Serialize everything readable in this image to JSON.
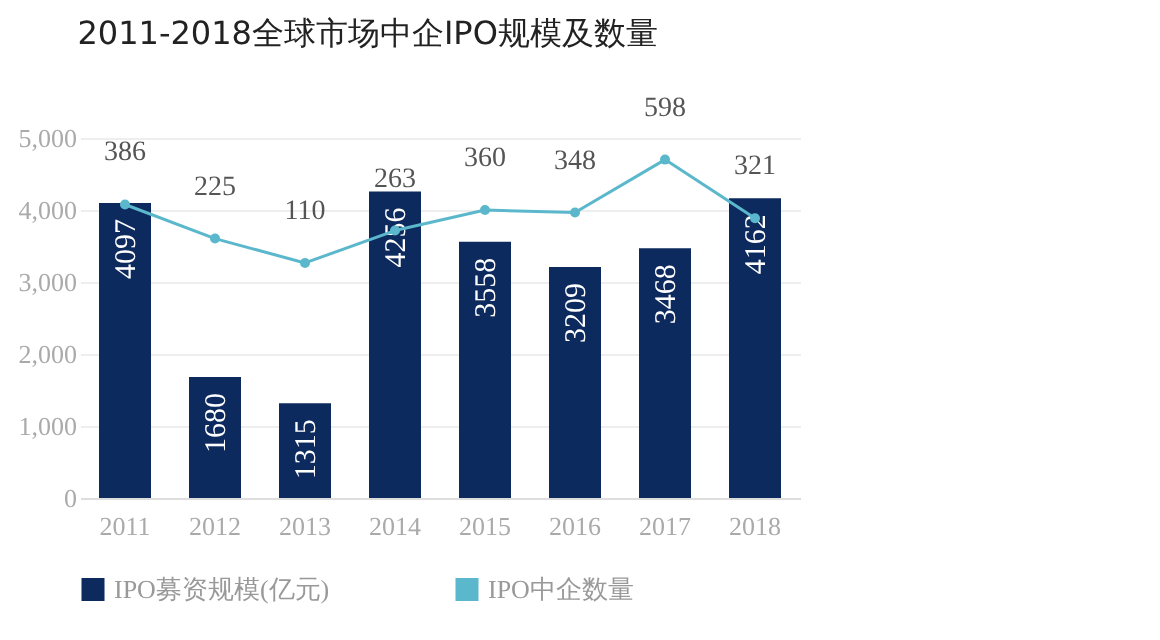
{
  "chart_data": {
    "type": "bar",
    "title": "2011-2018全球市场中企IPO规模及数量",
    "categories": [
      "2011",
      "2012",
      "2013",
      "2014",
      "2015",
      "2016",
      "2017",
      "2018"
    ],
    "series": [
      {
        "name": "IPO募资规模(亿元)",
        "color": "#0d2a5f",
        "values": [
          4097,
          1680,
          1315,
          4256,
          3558,
          3209,
          3468,
          4162
        ]
      },
      {
        "name": "IPO中企数量",
        "type": "line",
        "axis": "y2",
        "color": "#5bb8cc",
        "values": [
          386,
          225,
          110,
          263,
          360,
          348,
          598,
          321
        ]
      }
    ],
    "ylim": [
      0,
      5000
    ],
    "yticks": [
      0,
      {
        "value": 1000,
        "label": "1,000"
      },
      {
        "value": 2000,
        "label": "2,000"
      },
      {
        "value": 3000,
        "label": "3,000"
      },
      {
        "value": 4000,
        "label": "4,000"
      },
      {
        "value": 5000,
        "label": "5,000"
      }
    ],
    "y2lim": [
      -1000,
      700
    ],
    "tick_labels": "xy",
    "grid": "y",
    "legend": "bottom",
    "marker": "circle",
    "line_style": "solid",
    "data_labels": true
  }
}
